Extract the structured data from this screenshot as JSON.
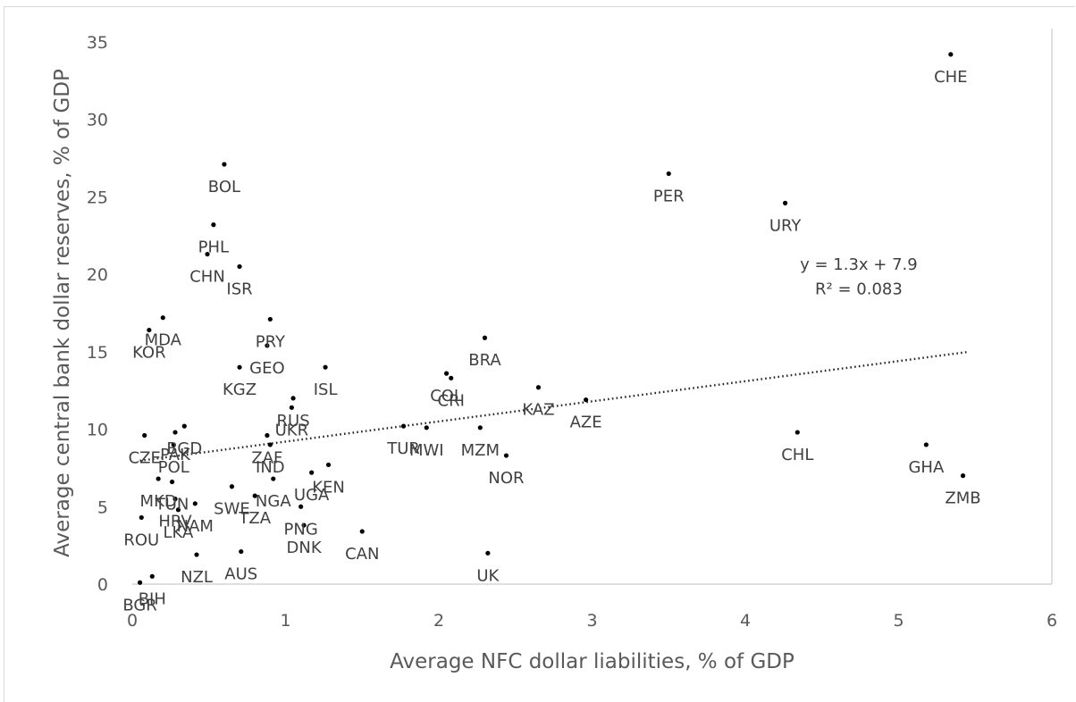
{
  "chart_data": {
    "type": "scatter",
    "title": "",
    "xlabel": "Average NFC dollar liabilities, % of GDP",
    "ylabel": "Average central bank dollar reserves, % of GDP",
    "xlim": [
      0,
      6
    ],
    "ylim": [
      0,
      35
    ],
    "x_ticks": [
      "0",
      "1",
      "2",
      "3",
      "4",
      "5",
      "6"
    ],
    "y_ticks": [
      "0",
      "5",
      "10",
      "15",
      "20",
      "25",
      "30",
      "35"
    ],
    "grid": false,
    "legend": "none",
    "marker_color": "#000000",
    "trendline": {
      "type": "linear",
      "equation": "y = 1.3x + 7.9",
      "r_squared": "R² = 0.083",
      "slope": 1.3,
      "intercept": 7.9,
      "style": "dotted"
    },
    "points": [
      {
        "label": "CHE",
        "x": 5.34,
        "y": 34.2
      },
      {
        "label": "PER",
        "x": 3.5,
        "y": 26.5
      },
      {
        "label": "URY",
        "x": 4.26,
        "y": 24.6
      },
      {
        "label": "BOL",
        "x": 0.6,
        "y": 27.1
      },
      {
        "label": "PHL",
        "x": 0.53,
        "y": 23.2
      },
      {
        "label": "CHN",
        "x": 0.49,
        "y": 21.3
      },
      {
        "label": "ISR",
        "x": 0.7,
        "y": 20.5
      },
      {
        "label": "MDA",
        "x": 0.2,
        "y": 17.2
      },
      {
        "label": "KOR",
        "x": 0.11,
        "y": 16.4
      },
      {
        "label": "PRY",
        "x": 0.9,
        "y": 17.1
      },
      {
        "label": "KGZ",
        "x": 0.7,
        "y": 14.0
      },
      {
        "label": "GEO",
        "x": 0.88,
        "y": 15.4
      },
      {
        "label": "ISL",
        "x": 1.26,
        "y": 14.0
      },
      {
        "label": "BRA",
        "x": 2.3,
        "y": 15.9
      },
      {
        "label": "COL",
        "x": 2.05,
        "y": 13.6
      },
      {
        "label": "CRI",
        "x": 2.08,
        "y": 13.3
      },
      {
        "label": "KAZ",
        "x": 2.65,
        "y": 12.7
      },
      {
        "label": "AZE",
        "x": 2.96,
        "y": 11.9
      },
      {
        "label": "UKR",
        "x": 1.04,
        "y": 11.4
      },
      {
        "label": "RUS",
        "x": 1.05,
        "y": 12.0
      },
      {
        "label": "CHL",
        "x": 4.34,
        "y": 9.8
      },
      {
        "label": "GHA",
        "x": 5.18,
        "y": 9.0
      },
      {
        "label": "ZMB",
        "x": 5.42,
        "y": 7.0
      },
      {
        "label": "TUR",
        "x": 1.77,
        "y": 10.2
      },
      {
        "label": "MWI",
        "x": 1.92,
        "y": 10.1
      },
      {
        "label": "MZM",
        "x": 2.27,
        "y": 10.1
      },
      {
        "label": "NOR",
        "x": 2.44,
        "y": 8.3
      },
      {
        "label": "CZE",
        "x": 0.08,
        "y": 9.6
      },
      {
        "label": "BGD",
        "x": 0.34,
        "y": 10.2
      },
      {
        "label": "PAK",
        "x": 0.28,
        "y": 9.8
      },
      {
        "label": "POL",
        "x": 0.27,
        "y": 9.0
      },
      {
        "label": "IND",
        "x": 0.9,
        "y": 9.0
      },
      {
        "label": "ZAF",
        "x": 0.88,
        "y": 9.6
      },
      {
        "label": "KEN",
        "x": 1.28,
        "y": 7.7
      },
      {
        "label": "UGA",
        "x": 1.17,
        "y": 7.2
      },
      {
        "label": "MKD",
        "x": 0.17,
        "y": 6.8
      },
      {
        "label": "TUN",
        "x": 0.26,
        "y": 6.6
      },
      {
        "label": "HRV",
        "x": 0.28,
        "y": 5.5
      },
      {
        "label": "LKA",
        "x": 0.3,
        "y": 4.8
      },
      {
        "label": "NAM",
        "x": 0.41,
        "y": 5.2
      },
      {
        "label": "SWE",
        "x": 0.65,
        "y": 6.3
      },
      {
        "label": "TZA",
        "x": 0.8,
        "y": 5.7
      },
      {
        "label": "NGA",
        "x": 0.92,
        "y": 6.8
      },
      {
        "label": "PNG",
        "x": 1.1,
        "y": 5.0
      },
      {
        "label": "DNK",
        "x": 1.12,
        "y": 3.8
      },
      {
        "label": "CAN",
        "x": 1.5,
        "y": 3.4
      },
      {
        "label": "ROU",
        "x": 0.06,
        "y": 4.3
      },
      {
        "label": "NZL",
        "x": 0.42,
        "y": 1.9
      },
      {
        "label": "AUS",
        "x": 0.71,
        "y": 2.1
      },
      {
        "label": "UK",
        "x": 2.32,
        "y": 2.0
      },
      {
        "label": "BIH",
        "x": 0.13,
        "y": 0.5
      },
      {
        "label": "BGR",
        "x": 0.05,
        "y": 0.1
      }
    ]
  }
}
